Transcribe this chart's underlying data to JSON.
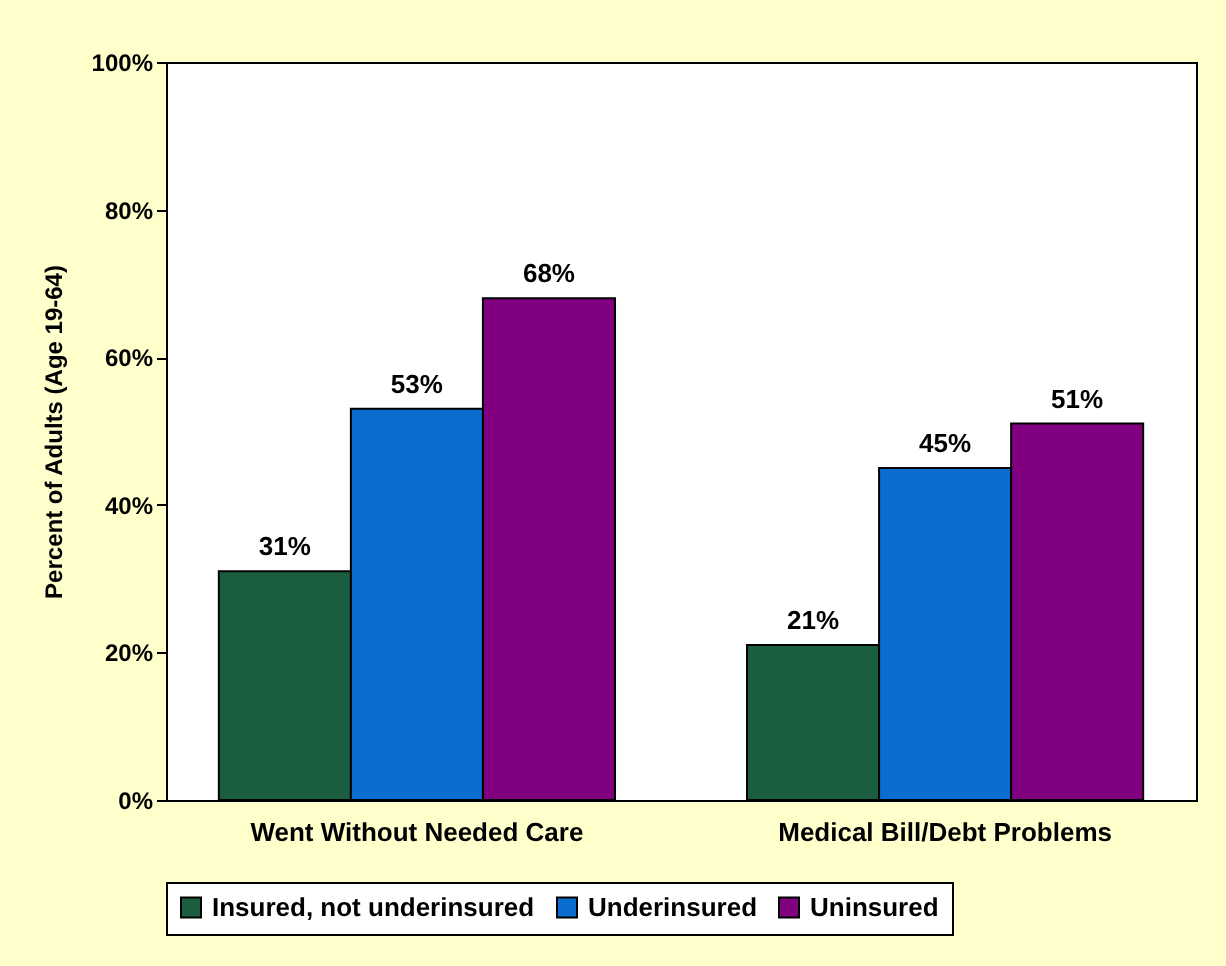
{
  "chart_data": {
    "type": "bar",
    "ylabel": "Percent of Adults (Age 19-64)",
    "categories": [
      "Went Without Needed Care",
      "Medical Bill/Debt Problems"
    ],
    "series": [
      {
        "name": "Insured, not underinsured",
        "color": "#1b5e3f",
        "values": [
          31,
          21
        ]
      },
      {
        "name": "Underinsured",
        "color": "#0a6ed1",
        "values": [
          53,
          45
        ]
      },
      {
        "name": "Uninsured",
        "color": "#800080",
        "values": [
          68,
          51
        ]
      }
    ],
    "ylim": [
      0,
      100
    ],
    "yticks": [
      {
        "value": 0,
        "label": "0%"
      },
      {
        "value": 20,
        "label": "20%"
      },
      {
        "value": 40,
        "label": "40%"
      },
      {
        "value": 60,
        "label": "60%"
      },
      {
        "value": 80,
        "label": "80%"
      },
      {
        "value": 100,
        "label": "100%"
      }
    ],
    "value_labels": [
      [
        "31%",
        "21%"
      ],
      [
        "53%",
        "45%"
      ],
      [
        "68%",
        "51%"
      ]
    ],
    "legend": "bottom",
    "grid": false
  }
}
